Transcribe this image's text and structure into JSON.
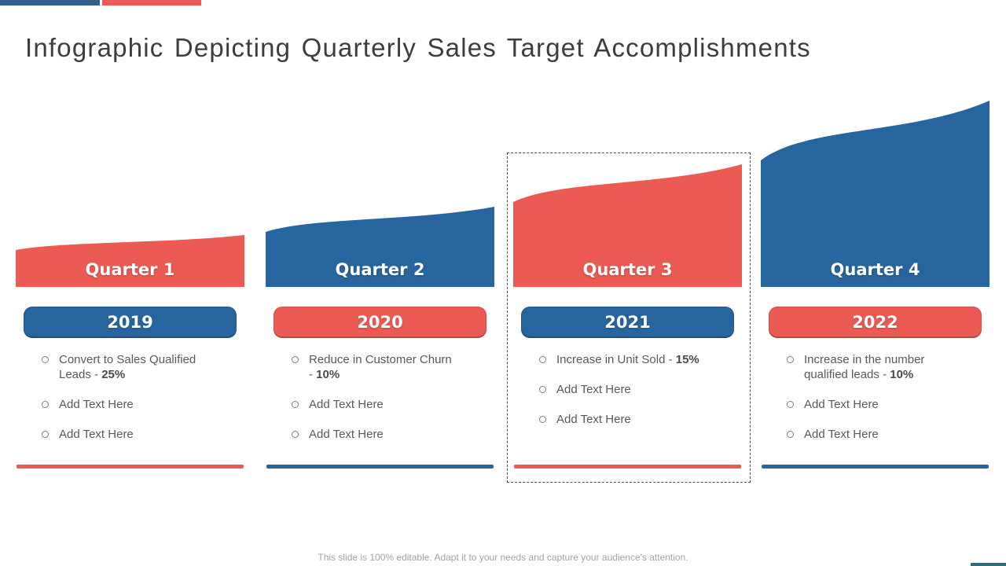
{
  "slide": {
    "title": "Infographic Depicting Quarterly Sales Target Accomplishments",
    "footer": "This slide is 100% editable. Adapt it to your needs and capture your audience's attention.",
    "accent_bars": {
      "blue": "#31618E",
      "red": "#EA5C56"
    },
    "corner_accent_color": "#33687D",
    "colors": {
      "red": "#EB5A53",
      "blue": "#27659E",
      "title_text": "#3d3d3d",
      "body_text": "#595959"
    }
  },
  "quarters": [
    {
      "label": "Quarter 1",
      "year": "2019",
      "selected": false,
      "wave_color": "#EB5A53",
      "year_bg": "#27659E",
      "underline_color": "#EB5A53",
      "wave": {
        "left_height": 47,
        "right_height": 66
      },
      "bullets": [
        {
          "text": "Convert to Sales Qualified Leads - ",
          "bold": "25%"
        },
        {
          "text": "Add Text Here",
          "bold": ""
        },
        {
          "text": "Add Text Here",
          "bold": ""
        }
      ]
    },
    {
      "label": "Quarter 2",
      "year": "2020",
      "selected": false,
      "wave_color": "#27659E",
      "year_bg": "#EB5A53",
      "underline_color": "#27659E",
      "wave": {
        "left_height": 70,
        "right_height": 102
      },
      "bullets": [
        {
          "text": "Reduce in Customer Churn - ",
          "bold": "10%"
        },
        {
          "text": "Add Text Here",
          "bold": ""
        },
        {
          "text": "Add Text Here",
          "bold": ""
        }
      ]
    },
    {
      "label": "Quarter 3",
      "year": "2021",
      "selected": true,
      "wave_color": "#EB5A53",
      "year_bg": "#27659E",
      "underline_color": "#EB5A53",
      "wave": {
        "left_height": 108,
        "right_height": 156
      },
      "bullets": [
        {
          "text": "Increase in Unit Sold - ",
          "bold": "15%"
        },
        {
          "text": "Add Text Here",
          "bold": ""
        },
        {
          "text": "Add Text Here",
          "bold": ""
        }
      ]
    },
    {
      "label": "Quarter 4",
      "year": "2022",
      "selected": false,
      "wave_color": "#27659E",
      "year_bg": "#EB5A53",
      "underline_color": "#27659E",
      "wave": {
        "left_height": 161,
        "right_height": 237
      },
      "bullets": [
        {
          "text": "Increase in the number qualified leads - ",
          "bold": "10%"
        },
        {
          "text": "Add Text Here",
          "bold": ""
        },
        {
          "text": "Add Text Here",
          "bold": ""
        }
      ]
    }
  ]
}
